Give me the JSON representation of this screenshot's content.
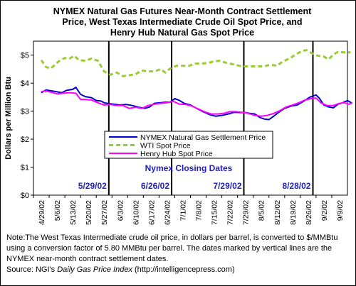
{
  "chart_data": {
    "type": "line",
    "title": "NYMEX Natural Gas Futures Near-Month Contract Settlement\nPrice, West Texas Intermediate Crude Oil Spot Price, and\nHenry Hub Natural Gas Spot Price",
    "ylabel": "Dollars per Million Btu",
    "xlabel": "",
    "ylim": [
      0,
      5.5
    ],
    "yticks": [
      "$0",
      "$1",
      "$2",
      "$3",
      "$4",
      "$5"
    ],
    "xticks": [
      "4/29/02",
      "5/6/02",
      "5/13/02",
      "5/20/02",
      "5/27/02",
      "6/3/02",
      "6/10/02",
      "6/17/02",
      "6/24/02",
      "7/1/02",
      "7/8/02",
      "7/15/02",
      "7/22/02",
      "7/29/02",
      "8/5/02",
      "8/12/02",
      "8/19/02",
      "8/26/02",
      "9/2/02",
      "9/9/02"
    ],
    "grid": false,
    "legend_placement": "center",
    "closing_dates_title": "Nymex Closing Dates",
    "closing_dates": [
      {
        "label": "5/29/02",
        "x": 4.3
      },
      {
        "label": "6/26/02",
        "x": 8.3
      },
      {
        "label": "7/29/02",
        "x": 12.9
      },
      {
        "label": "8/28/02",
        "x": 17.3
      }
    ],
    "series": [
      {
        "name": "NYMEX Natural Gas Settlement Price",
        "color": "#0000cc",
        "style": "solid",
        "points": [
          [
            0,
            3.66
          ],
          [
            0.3,
            3.76
          ],
          [
            0.7,
            3.72
          ],
          [
            1.0,
            3.69
          ],
          [
            1.3,
            3.66
          ],
          [
            1.6,
            3.74
          ],
          [
            2.0,
            3.78
          ],
          [
            2.2,
            3.85
          ],
          [
            2.5,
            3.6
          ],
          [
            2.8,
            3.52
          ],
          [
            3.2,
            3.48
          ],
          [
            3.5,
            3.38
          ],
          [
            3.8,
            3.36
          ],
          [
            4.0,
            3.3
          ],
          [
            4.3,
            3.27
          ],
          [
            4.6,
            3.25
          ],
          [
            5.0,
            3.22
          ],
          [
            5.4,
            3.24
          ],
          [
            5.8,
            3.2
          ],
          [
            6.2,
            3.14
          ],
          [
            6.6,
            3.1
          ],
          [
            6.9,
            3.15
          ],
          [
            7.2,
            3.28
          ],
          [
            7.6,
            3.3
          ],
          [
            7.9,
            3.32
          ],
          [
            8.2,
            3.32
          ],
          [
            8.5,
            3.45
          ],
          [
            8.8,
            3.38
          ],
          [
            9.1,
            3.28
          ],
          [
            9.5,
            3.22
          ],
          [
            9.9,
            3.1
          ],
          [
            10.3,
            2.98
          ],
          [
            10.7,
            2.88
          ],
          [
            11.1,
            2.82
          ],
          [
            11.5,
            2.85
          ],
          [
            11.9,
            2.9
          ],
          [
            12.3,
            2.96
          ],
          [
            12.7,
            2.95
          ],
          [
            13.0,
            2.95
          ],
          [
            13.3,
            2.92
          ],
          [
            13.6,
            2.9
          ],
          [
            13.9,
            2.78
          ],
          [
            14.2,
            2.72
          ],
          [
            14.5,
            2.7
          ],
          [
            14.8,
            2.82
          ],
          [
            15.1,
            2.95
          ],
          [
            15.5,
            3.1
          ],
          [
            15.9,
            3.18
          ],
          [
            16.3,
            3.22
          ],
          [
            16.7,
            3.35
          ],
          [
            17.1,
            3.5
          ],
          [
            17.5,
            3.58
          ],
          [
            17.7,
            3.47
          ],
          [
            18.0,
            3.22
          ],
          [
            18.3,
            3.15
          ],
          [
            18.6,
            3.12
          ],
          [
            18.9,
            3.25
          ],
          [
            19.2,
            3.3
          ],
          [
            19.5,
            3.38
          ],
          [
            19.8,
            3.28
          ]
        ]
      },
      {
        "name": "WTI Spot Price",
        "color": "#99cc33",
        "style": "dashed",
        "points": [
          [
            0,
            4.82
          ],
          [
            0.3,
            4.58
          ],
          [
            0.6,
            4.52
          ],
          [
            0.9,
            4.68
          ],
          [
            1.2,
            4.82
          ],
          [
            1.5,
            4.9
          ],
          [
            1.8,
            4.88
          ],
          [
            2.1,
            4.98
          ],
          [
            2.4,
            4.82
          ],
          [
            2.8,
            4.8
          ],
          [
            3.2,
            4.88
          ],
          [
            3.6,
            4.8
          ],
          [
            4.0,
            4.42
          ],
          [
            4.4,
            4.3
          ],
          [
            4.8,
            4.38
          ],
          [
            5.2,
            4.25
          ],
          [
            5.6,
            4.28
          ],
          [
            6.0,
            4.32
          ],
          [
            6.4,
            4.45
          ],
          [
            6.8,
            4.42
          ],
          [
            7.2,
            4.42
          ],
          [
            7.6,
            4.5
          ],
          [
            7.9,
            4.38
          ],
          [
            8.2,
            4.52
          ],
          [
            8.6,
            4.62
          ],
          [
            9.0,
            4.62
          ],
          [
            9.4,
            4.62
          ],
          [
            9.8,
            4.7
          ],
          [
            10.2,
            4.7
          ],
          [
            10.6,
            4.72
          ],
          [
            11.0,
            4.78
          ],
          [
            11.4,
            4.8
          ],
          [
            11.8,
            4.72
          ],
          [
            12.2,
            4.68
          ],
          [
            12.6,
            4.62
          ],
          [
            13.0,
            4.6
          ],
          [
            13.4,
            4.6
          ],
          [
            13.8,
            4.6
          ],
          [
            14.2,
            4.6
          ],
          [
            14.6,
            4.66
          ],
          [
            15.0,
            4.62
          ],
          [
            15.4,
            4.78
          ],
          [
            15.8,
            4.88
          ],
          [
            16.2,
            5.02
          ],
          [
            16.6,
            5.15
          ],
          [
            16.9,
            5.18
          ],
          [
            17.2,
            5.08
          ],
          [
            17.6,
            4.98
          ],
          [
            18.0,
            4.95
          ],
          [
            18.3,
            4.85
          ],
          [
            18.6,
            5.02
          ],
          [
            18.9,
            5.12
          ],
          [
            19.3,
            5.1
          ],
          [
            19.7,
            5.1
          ]
        ]
      },
      {
        "name": "Henry Hub Spot Price",
        "color": "#ff00ff",
        "style": "solid",
        "points": [
          [
            0,
            3.7
          ],
          [
            0.3,
            3.72
          ],
          [
            0.6,
            3.68
          ],
          [
            1.0,
            3.62
          ],
          [
            1.4,
            3.64
          ],
          [
            1.8,
            3.66
          ],
          [
            2.2,
            3.64
          ],
          [
            2.5,
            3.42
          ],
          [
            2.8,
            3.42
          ],
          [
            3.2,
            3.4
          ],
          [
            3.6,
            3.3
          ],
          [
            4.0,
            3.22
          ],
          [
            4.4,
            3.24
          ],
          [
            4.8,
            3.2
          ],
          [
            5.2,
            3.2
          ],
          [
            5.6,
            3.1
          ],
          [
            6.0,
            3.14
          ],
          [
            6.4,
            3.1
          ],
          [
            6.8,
            3.2
          ],
          [
            7.2,
            3.25
          ],
          [
            7.6,
            3.28
          ],
          [
            8.0,
            3.3
          ],
          [
            8.4,
            3.35
          ],
          [
            8.8,
            3.25
          ],
          [
            9.2,
            3.24
          ],
          [
            9.6,
            3.18
          ],
          [
            10.0,
            3.08
          ],
          [
            10.4,
            2.98
          ],
          [
            10.8,
            2.9
          ],
          [
            11.2,
            2.9
          ],
          [
            11.6,
            2.92
          ],
          [
            12.0,
            2.98
          ],
          [
            12.4,
            2.98
          ],
          [
            12.8,
            2.96
          ],
          [
            13.2,
            2.92
          ],
          [
            13.6,
            2.85
          ],
          [
            14.0,
            2.82
          ],
          [
            14.4,
            2.85
          ],
          [
            14.8,
            2.92
          ],
          [
            15.2,
            3.02
          ],
          [
            15.6,
            3.15
          ],
          [
            16.0,
            3.22
          ],
          [
            16.4,
            3.3
          ],
          [
            16.8,
            3.4
          ],
          [
            17.2,
            3.45
          ],
          [
            17.5,
            3.47
          ],
          [
            17.8,
            3.3
          ],
          [
            18.2,
            3.2
          ],
          [
            18.6,
            3.2
          ],
          [
            19.0,
            3.28
          ],
          [
            19.3,
            3.3
          ],
          [
            19.6,
            3.25
          ],
          [
            19.8,
            3.3
          ]
        ]
      }
    ]
  },
  "footnote": {
    "text": "Note:The West Texas Intermediate crude oil price, in dollars per barrel,  is converted to $/MMBtu using a conversion factor of 5.80 MMBtu per barrel.  The dates marked by vertical lines are the NYMEX near-month contract settlement dates.",
    "source_prefix": "Source:  NGI's ",
    "source_title": "Daily Gas Price Index",
    "source_suffix": " (http://intelligencepress.com)"
  }
}
